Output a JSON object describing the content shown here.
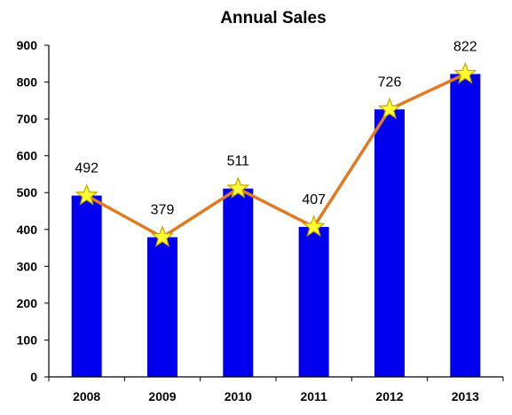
{
  "chart_data": {
    "type": "bar",
    "title": "Annual Sales",
    "xlabel": "",
    "ylabel": "",
    "categories": [
      "2008",
      "2009",
      "2010",
      "2011",
      "2012",
      "2013"
    ],
    "values": [
      492,
      379,
      511,
      407,
      726,
      822
    ],
    "data_labels": [
      "492",
      "379",
      "511",
      "407",
      "726",
      "822"
    ],
    "ylim": [
      0,
      900
    ],
    "yticks": [
      "0",
      "100",
      "200",
      "300",
      "400",
      "500",
      "600",
      "700",
      "800",
      "900"
    ],
    "overlay": {
      "type": "line",
      "marker": "star",
      "values": [
        492,
        379,
        511,
        407,
        726,
        822
      ]
    },
    "grid": false,
    "legend": "none",
    "colors": {
      "bar": "#0000ee",
      "line": "#e07b24",
      "marker_fill": "#ffff33",
      "marker_stroke": "#c8a800"
    }
  }
}
